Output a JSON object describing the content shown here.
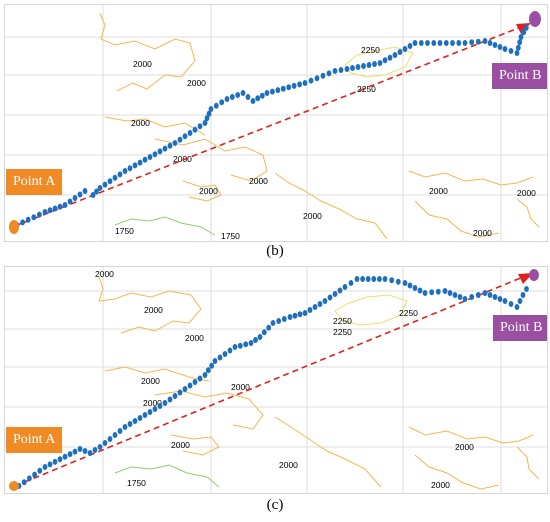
{
  "colors": {
    "grid": "#dcdcdc",
    "contour": "#f2b84b",
    "contour_low": "#8fcf6a",
    "contour_high": "#e9e16a",
    "path": "#1f6fbf",
    "line": "#e02020",
    "point_a": "#f08a24",
    "point_b": "#9b4fa3"
  },
  "icons": {
    "path_dot": "circle-dot",
    "arrow": "arrowhead"
  },
  "panels": [
    {
      "id": "b",
      "caption": "(b)",
      "point_a_label": "Point A",
      "point_b_label": "Point B",
      "contour_labels": [
        "2000",
        "2000",
        "2000",
        "2000",
        "2000",
        "2000",
        "2000",
        "2000",
        "2250",
        "2250",
        "1750",
        "1750",
        "2000",
        "2000"
      ]
    },
    {
      "id": "c",
      "caption": "(c)",
      "point_a_label": "Point A",
      "point_b_label": "Point B",
      "contour_labels": [
        "2000",
        "2000",
        "2000",
        "2000",
        "2000",
        "2000",
        "2000",
        "2000",
        "2250",
        "2250",
        "2250",
        "1750",
        "2000",
        "2000"
      ]
    }
  ]
}
